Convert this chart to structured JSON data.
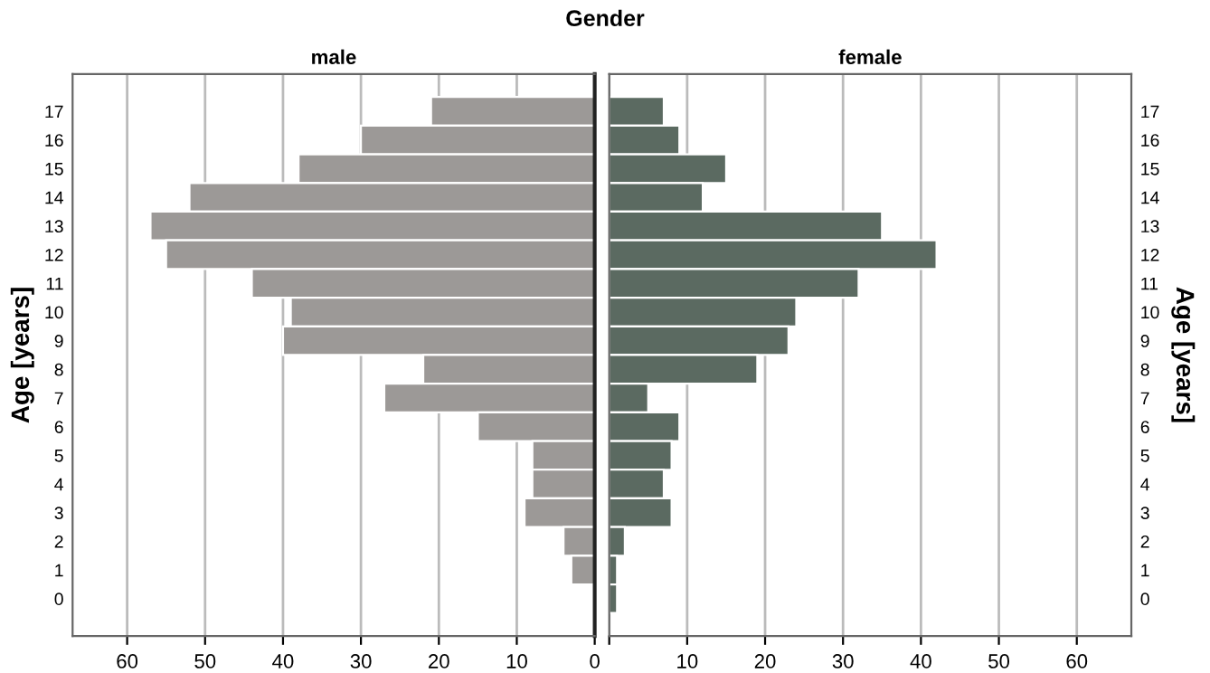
{
  "chart_data": [
    {
      "type": "bar",
      "orientation": "horizontal",
      "title": "male",
      "ylabel": "Age [years]",
      "annotations": [
        "Gender"
      ],
      "categories": [
        "17",
        "16",
        "15",
        "14",
        "13",
        "12",
        "11",
        "10",
        "9",
        "8",
        "7",
        "6",
        "5",
        "4",
        "3",
        "2",
        "1",
        "0"
      ],
      "values": [
        21,
        30,
        38,
        52,
        57,
        55,
        44,
        39,
        40,
        22,
        27,
        15,
        8,
        8,
        9,
        4,
        3,
        0
      ],
      "color": "#9c9997",
      "xlim": [
        67,
        0
      ],
      "xticks": [
        60,
        50,
        40,
        30,
        20,
        10,
        0
      ],
      "grid": "x",
      "legend": false
    },
    {
      "type": "bar",
      "orientation": "horizontal",
      "title": "female",
      "ylabel": "Age [years]",
      "categories": [
        "17",
        "16",
        "15",
        "14",
        "13",
        "12",
        "11",
        "10",
        "9",
        "8",
        "7",
        "6",
        "5",
        "4",
        "3",
        "2",
        "1",
        "0"
      ],
      "values": [
        7,
        9,
        15,
        12,
        35,
        42,
        32,
        24,
        23,
        19,
        5,
        9,
        8,
        7,
        8,
        2,
        1,
        1
      ],
      "color": "#5b6a61",
      "xlim": [
        0,
        67
      ],
      "xticks": [
        {
          "value": 0,
          "label": null
        },
        10,
        20,
        30,
        40,
        50,
        60
      ],
      "grid": "x",
      "legend": false
    }
  ]
}
